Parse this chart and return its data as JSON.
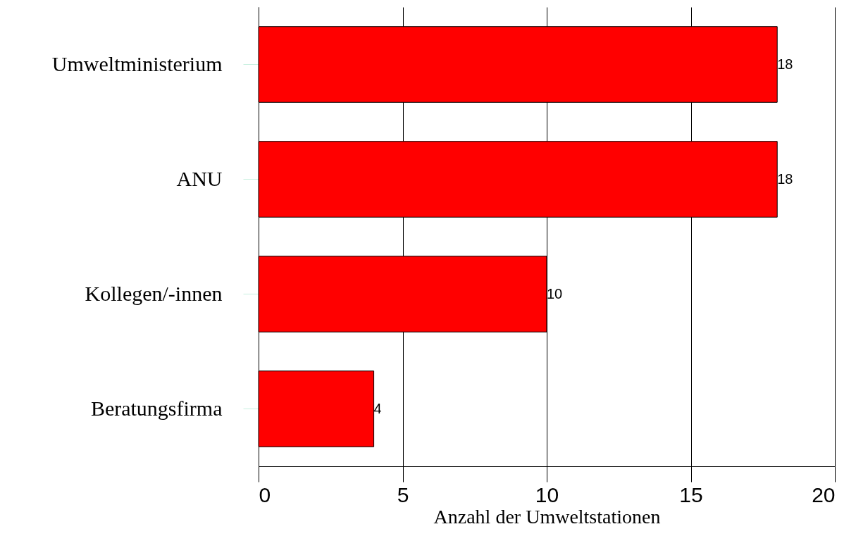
{
  "chart_data": {
    "type": "bar",
    "orientation": "horizontal",
    "categories": [
      "Umweltministerium",
      "ANU",
      "Kollegen/-innen",
      "Beratungsfirma"
    ],
    "values": [
      18,
      18,
      10,
      4
    ],
    "color": "#ff0000",
    "xlabel": "Anzahl der Umweltstationen",
    "xlim": [
      0,
      20
    ],
    "xticks": [
      0,
      5,
      10,
      15,
      20
    ],
    "grid": "x",
    "data_labels": true
  }
}
